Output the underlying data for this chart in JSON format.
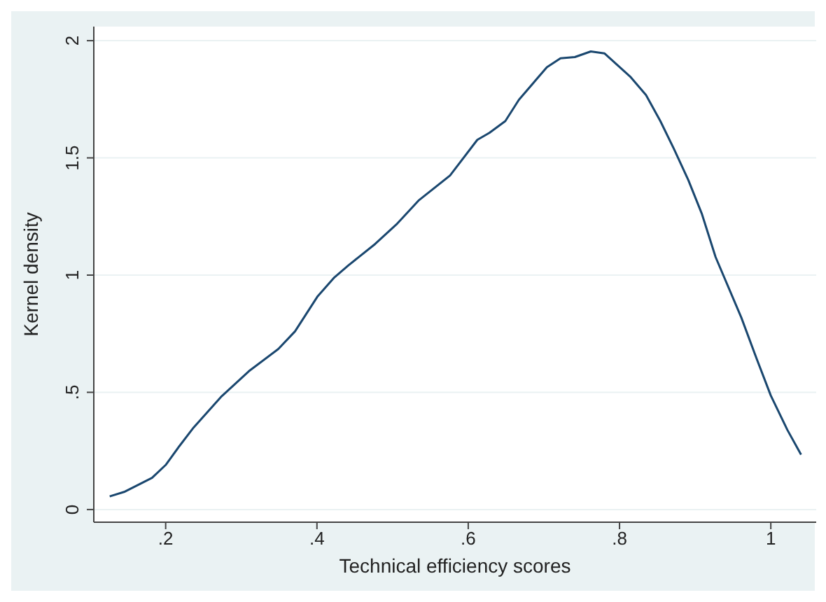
{
  "chart_data": {
    "type": "line",
    "xlabel": "Technical efficiency scores",
    "ylabel": "Kernel density",
    "x": [
      0.126,
      0.145,
      0.182,
      0.2,
      0.218,
      0.237,
      0.273,
      0.31,
      0.349,
      0.371,
      0.401,
      0.423,
      0.441,
      0.477,
      0.505,
      0.535,
      0.576,
      0.612,
      0.628,
      0.649,
      0.667,
      0.704,
      0.722,
      0.741,
      0.762,
      0.78,
      0.814,
      0.835,
      0.854,
      0.872,
      0.891,
      0.909,
      0.927,
      0.961,
      0.982,
      1.0,
      1.022,
      1.04
    ],
    "series": [
      {
        "color": "#1a476f",
        "values": [
          0.056,
          0.075,
          0.135,
          0.19,
          0.27,
          0.35,
          0.48,
          0.59,
          0.685,
          0.76,
          0.91,
          0.99,
          1.04,
          1.133,
          1.216,
          1.32,
          1.425,
          1.577,
          1.607,
          1.657,
          1.748,
          1.887,
          1.925,
          1.93,
          1.954,
          1.946,
          1.847,
          1.768,
          1.657,
          1.538,
          1.405,
          1.26,
          1.077,
          0.819,
          0.637,
          0.486,
          0.339,
          0.234
        ]
      }
    ],
    "xlim": [
      0.105,
      1.06
    ],
    "ylim": [
      -0.054,
      2.06
    ],
    "xticks": [
      {
        "value": 0.2,
        "label": ".2"
      },
      {
        "value": 0.4,
        "label": ".4"
      },
      {
        "value": 0.6,
        "label": ".6"
      },
      {
        "value": 0.8,
        "label": ".8"
      },
      1
    ],
    "yticks": [
      0,
      {
        "value": 0.5,
        "label": ".5"
      },
      1,
      {
        "value": 1.5,
        "label": "1.5"
      },
      2
    ],
    "grid": "y",
    "marker": "none",
    "line_style": "solid"
  }
}
